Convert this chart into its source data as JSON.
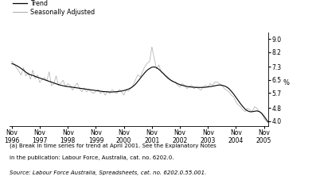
{
  "ylabel": "%",
  "yticks": [
    4.0,
    4.8,
    5.7,
    6.5,
    7.3,
    8.2,
    9.0
  ],
  "ylim": [
    3.7,
    9.4
  ],
  "xlim": [
    -1,
    110
  ],
  "xtick_positions": [
    0,
    12,
    24,
    36,
    48,
    60,
    72,
    84,
    96,
    108
  ],
  "xtick_labels": [
    "Nov\n1996",
    "Nov\n1997",
    "Nov\n1998",
    "Nov\n1999",
    "Nov\n2000",
    "Nov\n2001",
    "Nov\n2002",
    "Nov\n2003",
    "Nov\n2004",
    "Nov\n2005"
  ],
  "trend_color": "#000000",
  "seasonal_color": "#aaaaaa",
  "legend_labels": [
    "Trend",
    "Seasonally Adjusted"
  ],
  "footnote1": "(a) Break in time series for trend at April 2001. See the Explanatory Notes",
  "footnote2": "in the publication: Labour Force, Australia, cat. no. 6202.0.",
  "source": "Source: Labour Force Australia, Spreadsheets, cat. no. 6202.0.55.001.",
  "trend_data": [
    7.5,
    7.45,
    7.38,
    7.3,
    7.2,
    7.1,
    6.98,
    6.88,
    6.82,
    6.78,
    6.72,
    6.67,
    6.62,
    6.57,
    6.52,
    6.47,
    6.42,
    6.37,
    6.32,
    6.27,
    6.22,
    6.18,
    6.15,
    6.12,
    6.1,
    6.08,
    6.06,
    6.04,
    6.02,
    6.0,
    5.98,
    5.96,
    5.94,
    5.92,
    5.9,
    5.88,
    5.86,
    5.84,
    5.82,
    5.8,
    5.79,
    5.78,
    5.77,
    5.77,
    5.78,
    5.79,
    5.81,
    5.83,
    5.86,
    5.9,
    5.95,
    6.02,
    6.12,
    6.25,
    6.42,
    6.6,
    6.78,
    6.95,
    7.1,
    7.2,
    7.28,
    7.3,
    7.25,
    7.15,
    7.02,
    6.88,
    6.73,
    6.6,
    6.5,
    6.42,
    6.35,
    6.28,
    6.22,
    6.18,
    6.14,
    6.11,
    6.09,
    6.07,
    6.06,
    6.05,
    6.05,
    6.05,
    6.05,
    6.06,
    6.08,
    6.1,
    6.12,
    6.15,
    6.18,
    6.2,
    6.18,
    6.14,
    6.08,
    5.98,
    5.82,
    5.65,
    5.45,
    5.25,
    5.05,
    4.88,
    4.72,
    4.62,
    4.57,
    4.57,
    4.6,
    4.62,
    4.58,
    4.48,
    4.3,
    4.1,
    3.92
  ],
  "seasonal_data": [
    7.65,
    7.45,
    7.25,
    7.05,
    6.8,
    7.25,
    6.75,
    6.95,
    6.55,
    7.1,
    6.6,
    6.8,
    6.35,
    6.55,
    6.65,
    6.45,
    7.0,
    6.15,
    6.28,
    6.75,
    6.18,
    6.32,
    6.48,
    6.08,
    6.28,
    6.18,
    5.88,
    6.12,
    6.32,
    5.98,
    5.78,
    6.02,
    5.78,
    5.92,
    5.78,
    5.68,
    5.82,
    5.92,
    5.68,
    5.82,
    5.58,
    5.82,
    5.68,
    5.92,
    5.78,
    5.68,
    5.92,
    5.78,
    5.58,
    5.92,
    5.82,
    6.02,
    6.18,
    6.52,
    6.82,
    6.68,
    7.02,
    7.32,
    7.52,
    7.62,
    8.52,
    7.82,
    7.18,
    7.42,
    6.98,
    6.88,
    6.78,
    6.68,
    6.48,
    6.38,
    6.38,
    6.18,
    6.08,
    6.28,
    6.18,
    5.98,
    6.08,
    6.18,
    5.98,
    6.08,
    5.98,
    5.88,
    6.08,
    6.18,
    6.08,
    6.28,
    6.18,
    6.38,
    6.38,
    6.28,
    6.18,
    5.98,
    5.88,
    5.78,
    5.58,
    5.48,
    5.18,
    4.98,
    4.88,
    4.68,
    4.58,
    4.78,
    4.68,
    4.58,
    4.88,
    4.78,
    4.58,
    4.48,
    4.18,
    3.98,
    3.88
  ]
}
